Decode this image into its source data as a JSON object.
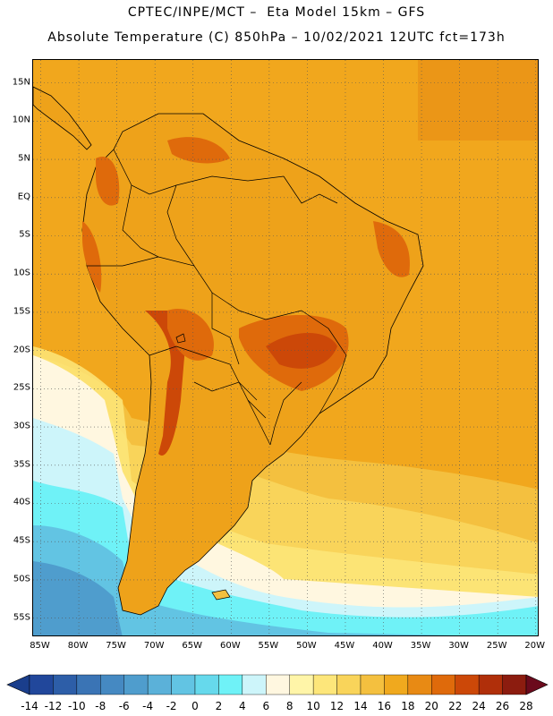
{
  "header": {
    "line1": "CPTEC/INPE/MCT –  Eta Model 15km – GFS",
    "line2": "Absolute Temperature (C) 850hPa – 10/02/2021 12UTC fct=173h"
  },
  "map": {
    "lat_labels": [
      "15N",
      "10N",
      "5N",
      "EQ",
      "5S",
      "10S",
      "15S",
      "20S",
      "25S",
      "30S",
      "35S",
      "40S",
      "45S",
      "50S",
      "55S"
    ],
    "lat_values": [
      15,
      10,
      5,
      0,
      -5,
      -10,
      -15,
      -20,
      -25,
      -30,
      -35,
      -40,
      -45,
      -50,
      -55
    ],
    "lon_labels": [
      "85W",
      "80W",
      "75W",
      "70W",
      "65W",
      "60W",
      "55W",
      "50W",
      "45W",
      "40W",
      "35W",
      "30W",
      "25W",
      "20W"
    ],
    "lon_values": [
      -85,
      -80,
      -75,
      -70,
      -65,
      -60,
      -55,
      -50,
      -45,
      -40,
      -35,
      -30,
      -25,
      -20
    ],
    "extent": {
      "lon_min": -86,
      "lon_max": -19.5,
      "lat_min": -57.5,
      "lat_max": 18
    },
    "gridlines": "dotted"
  },
  "colorbar": {
    "labels": [
      "-14",
      "-12",
      "-10",
      "-8",
      "-6",
      "-4",
      "-2",
      "0",
      "2",
      "4",
      "6",
      "8",
      "10",
      "12",
      "14",
      "16",
      "18",
      "20",
      "22",
      "24",
      "26",
      "28"
    ],
    "under_color": "#1a3e8c",
    "over_color": "#6b0a1c",
    "colors": [
      "#21479b",
      "#2d5ea8",
      "#3a74b5",
      "#4589c2",
      "#4f9dcd",
      "#5bb1d9",
      "#62c4e3",
      "#66d9ec",
      "#6ff2f7",
      "#cdf5fa",
      "#fff7e0",
      "#fff5a8",
      "#fde67a",
      "#f9d45a",
      "#f4c03f",
      "#f0a91e",
      "#e88a14",
      "#df6a0b",
      "#cc4808",
      "#b02f0a",
      "#8c1c0f"
    ]
  }
}
